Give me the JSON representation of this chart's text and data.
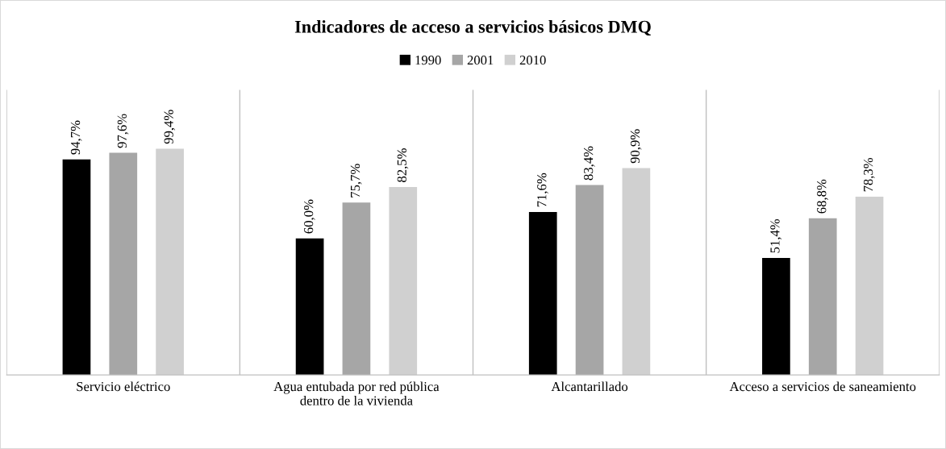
{
  "chart_data": {
    "type": "bar",
    "title": "Indicadores de acceso a servicios básicos DMQ",
    "categories": [
      "Servicio eléctrico",
      "Agua entubada por red pública\ndentro de la vivienda",
      "Alcantarillado",
      "Acceso a servicios de saneamiento"
    ],
    "series": [
      {
        "name": "1990",
        "color": "#000000",
        "values": [
          94.7,
          60.0,
          71.6,
          51.4
        ],
        "value_labels": [
          "94,7%",
          "60,0%",
          "71,6%",
          "51,4%"
        ]
      },
      {
        "name": "2001",
        "color": "#a6a6a6",
        "values": [
          97.6,
          75.7,
          83.4,
          68.8
        ],
        "value_labels": [
          "97,6%",
          "75,7%",
          "83,4%",
          "68,8%"
        ]
      },
      {
        "name": "2010",
        "color": "#d0d0d0",
        "values": [
          99.4,
          82.5,
          90.9,
          78.3
        ],
        "value_labels": [
          "99,4%",
          "82,5%",
          "90,9%",
          "78,3%"
        ]
      }
    ],
    "legend": "top",
    "grid": false
  }
}
